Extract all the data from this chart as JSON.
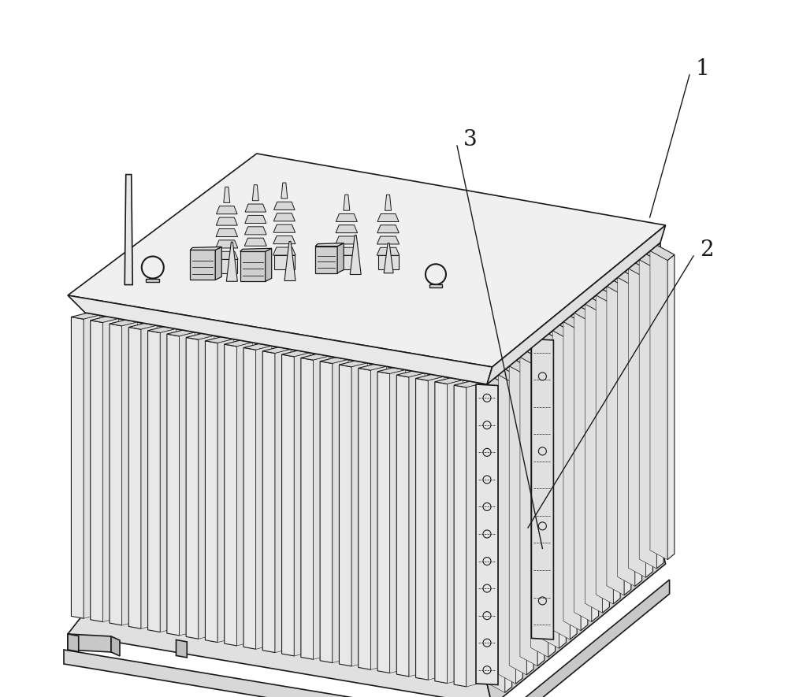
{
  "background_color": "#ffffff",
  "line_color": "#1a1a1a",
  "label_1": "1",
  "label_2": "2",
  "label_3": "3",
  "label_fontsize": 20,
  "fig_width": 10.0,
  "fig_height": 8.85
}
